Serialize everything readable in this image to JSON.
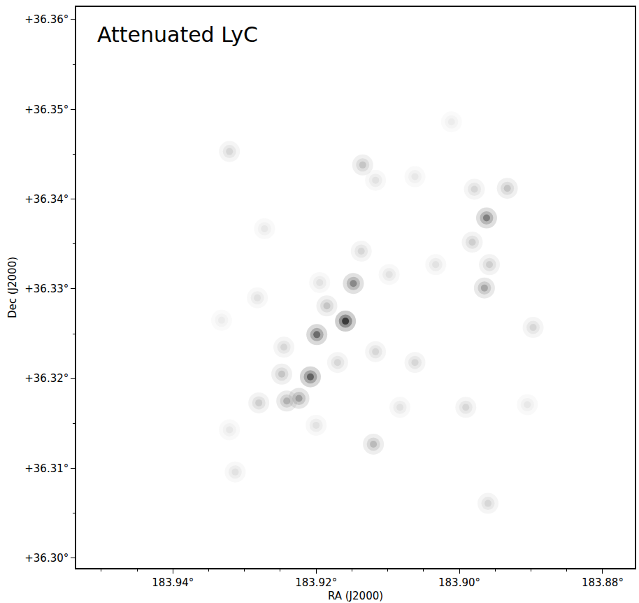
{
  "chart_data": {
    "type": "scatter",
    "annotation": "Attenuated LyC",
    "xlabel": "RA (J2000)",
    "ylabel": "Dec (J2000)",
    "xlim": [
      183.9535,
      183.8755
    ],
    "ylim": [
      36.2989,
      36.3614
    ],
    "xticks": [
      {
        "value": 183.94,
        "label": "183.94°"
      },
      {
        "value": 183.92,
        "label": "183.92°"
      },
      {
        "value": 183.9,
        "label": "183.90°"
      },
      {
        "value": 183.88,
        "label": "183.88°"
      }
    ],
    "yticks": [
      {
        "value": 36.3,
        "label": "+36.30°"
      },
      {
        "value": 36.31,
        "label": "+36.31°"
      },
      {
        "value": 36.32,
        "label": "+36.32°"
      },
      {
        "value": 36.33,
        "label": "+36.33°"
      },
      {
        "value": 36.34,
        "label": "+36.34°"
      },
      {
        "value": 36.35,
        "label": "+36.35°"
      },
      {
        "value": 36.36,
        "label": "+36.36°"
      }
    ],
    "grid": false,
    "marker": "circle",
    "zlim": [
      0,
      1
    ],
    "x": [
      183.9159,
      183.9199,
      183.9208,
      183.9148,
      183.8962,
      183.8965,
      183.8933,
      183.9135,
      183.912,
      183.9224,
      183.9241,
      183.9248,
      183.928,
      183.9321,
      183.9137,
      183.8982,
      183.8958,
      183.8979,
      183.9062,
      183.9117,
      183.8991,
      183.9083,
      183.896,
      183.8897,
      183.9195,
      183.9282,
      183.9313,
      183.9321,
      183.9272,
      183.9011,
      183.9185,
      183.917,
      183.9098,
      183.9117,
      183.9062,
      183.9033,
      183.8905,
      183.92,
      183.9332,
      183.9245
    ],
    "y": [
      36.3264,
      36.3249,
      36.3202,
      36.3306,
      36.3379,
      36.3301,
      36.3412,
      36.3438,
      36.3127,
      36.3178,
      36.3175,
      36.3205,
      36.3173,
      36.3453,
      36.3342,
      36.3352,
      36.3327,
      36.3411,
      36.3218,
      36.323,
      36.3168,
      36.3168,
      36.3061,
      36.3257,
      36.3307,
      36.329,
      36.3096,
      36.3143,
      36.3367,
      36.3486,
      36.3281,
      36.3218,
      36.3316,
      36.3421,
      36.3425,
      36.3327,
      36.3171,
      36.3148,
      36.3265,
      36.3235
    ],
    "intensity": [
      1.0,
      0.75,
      0.8,
      0.6,
      0.65,
      0.45,
      0.3,
      0.3,
      0.35,
      0.5,
      0.4,
      0.3,
      0.25,
      0.2,
      0.2,
      0.25,
      0.25,
      0.2,
      0.2,
      0.2,
      0.2,
      0.15,
      0.2,
      0.2,
      0.15,
      0.15,
      0.15,
      0.12,
      0.12,
      0.1,
      0.3,
      0.2,
      0.15,
      0.15,
      0.12,
      0.15,
      0.12,
      0.15,
      0.1,
      0.2
    ]
  }
}
